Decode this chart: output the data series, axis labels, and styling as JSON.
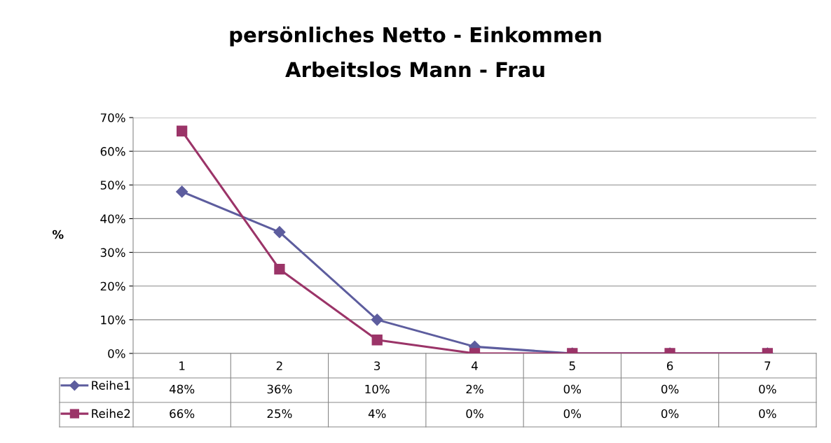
{
  "chart_data": {
    "type": "line",
    "title": "persönliches Netto - Einkommen",
    "subtitle": "Arbeitslos Mann - Frau",
    "ylabel": "%",
    "categories": [
      "1",
      "2",
      "3",
      "4",
      "5",
      "6",
      "7"
    ],
    "series": [
      {
        "name": "Reihe1",
        "color": "#5d5d9e",
        "marker": "diamond",
        "values": [
          48,
          36,
          10,
          2,
          0,
          0,
          0
        ],
        "value_labels": [
          "48%",
          "36%",
          "10%",
          "2%",
          "0%",
          "0%",
          "0%"
        ]
      },
      {
        "name": "Reihe2",
        "color": "#9b3468",
        "marker": "square",
        "values": [
          66,
          25,
          4,
          0,
          0,
          0,
          0
        ],
        "value_labels": [
          "66%",
          "25%",
          "4%",
          "0%",
          "0%",
          "0%",
          "0%"
        ]
      }
    ],
    "ylim": [
      0,
      70
    ],
    "yticks": [
      {
        "value": 0,
        "label": "0%"
      },
      {
        "value": 10,
        "label": "10%"
      },
      {
        "value": 20,
        "label": "20%"
      },
      {
        "value": 30,
        "label": "30%"
      },
      {
        "value": 40,
        "label": "40%"
      },
      {
        "value": 50,
        "label": "50%"
      },
      {
        "value": 60,
        "label": "60%"
      },
      {
        "value": 70,
        "label": "70%"
      }
    ],
    "grid": "y",
    "legend": "bottom left"
  }
}
